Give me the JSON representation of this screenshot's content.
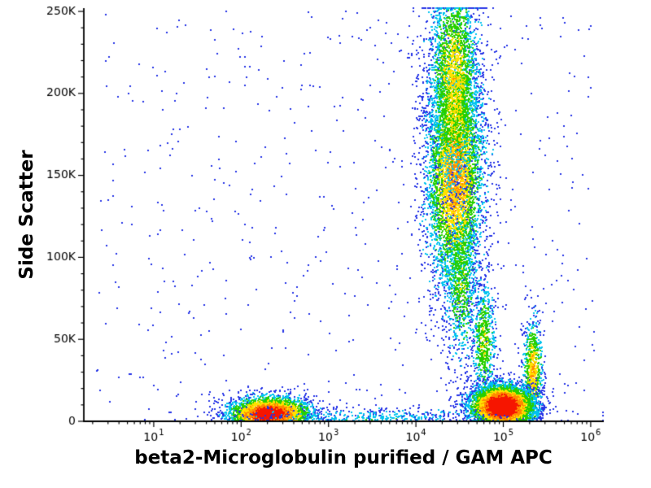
{
  "chart_data": {
    "type": "scatter",
    "subtype": "flow-cytometry-pseudocolor-density",
    "title": "",
    "xlabel": "beta2-Microglobulin purified / GAM APC",
    "ylabel": "Side Scatter",
    "x_scale": "log10",
    "x_range_log10": [
      0.2,
      6.15
    ],
    "x_tick_base": "10",
    "x_major_tick_exponents": [
      1,
      2,
      3,
      4,
      5,
      6
    ],
    "y_range": [
      0,
      252000
    ],
    "y_major_ticks": [
      {
        "value": 0,
        "label": "0"
      },
      {
        "value": 50000,
        "label": "50K"
      },
      {
        "value": 100000,
        "label": "100K"
      },
      {
        "value": 150000,
        "label": "150K"
      },
      {
        "value": 200000,
        "label": "200K"
      },
      {
        "value": 250000,
        "label": "250K"
      }
    ],
    "y_minor_step": 10000,
    "grid": false,
    "legend": "none",
    "axis_color": "#000000",
    "background_color": "#ffffff",
    "palette_bands": [
      {
        "min": 0.78,
        "color": "#f61500"
      },
      {
        "min": 0.62,
        "color": "#ff8a00"
      },
      {
        "min": 0.46,
        "color": "#ffe100"
      },
      {
        "min": 0.29,
        "color": "#27cf00"
      },
      {
        "min": 0.14,
        "color": "#00c3ef"
      },
      {
        "min": -9,
        "color": "#2433e6"
      }
    ],
    "populations": [
      {
        "name": "stained-high-ssc-main",
        "cx_log10": 4.45,
        "sx_log10": 0.17,
        "cy": 150000,
        "sy": 38000,
        "count": 5200,
        "intensity": 0.66
      },
      {
        "name": "stained-high-ssc-top",
        "cx_log10": 4.44,
        "sx_log10": 0.15,
        "cy": 208000,
        "sy": 34000,
        "count": 2600,
        "intensity": 0.55
      },
      {
        "name": "stained-mid-tail",
        "cx_log10": 4.52,
        "sx_log10": 0.1,
        "cy": 85000,
        "sy": 26000,
        "count": 800,
        "intensity": 0.42
      },
      {
        "name": "stained-low-ssc-streak",
        "cx_log10": 4.78,
        "sx_log10": 0.07,
        "cy": 48000,
        "sy": 20000,
        "count": 650,
        "intensity": 0.45
      },
      {
        "name": "right-upward-arm",
        "cx_log10": 5.34,
        "sx_log10": 0.055,
        "cy": 30000,
        "sy": 17000,
        "count": 800,
        "intensity": 0.62
      },
      {
        "name": "stained-bright-low-ssc",
        "cx_log10": 4.99,
        "sx_log10": 0.18,
        "cy": 9000,
        "sy": 6500,
        "count": 6200,
        "intensity": 1.12
      },
      {
        "name": "negative-population",
        "cx_log10": 2.33,
        "sx_log10": 0.24,
        "cy": 4500,
        "sy": 5200,
        "count": 3600,
        "intensity": 0.98
      },
      {
        "name": "baseline-debris-band",
        "cx_log10": 3.5,
        "sx_log10": 0.85,
        "cy": 1500,
        "sy": 3500,
        "count": 700,
        "intensity": 0.22
      }
    ],
    "background_scatter": {
      "count": 600,
      "x_log10": [
        0.35,
        6.05
      ],
      "y": [
        0,
        250000
      ]
    }
  }
}
